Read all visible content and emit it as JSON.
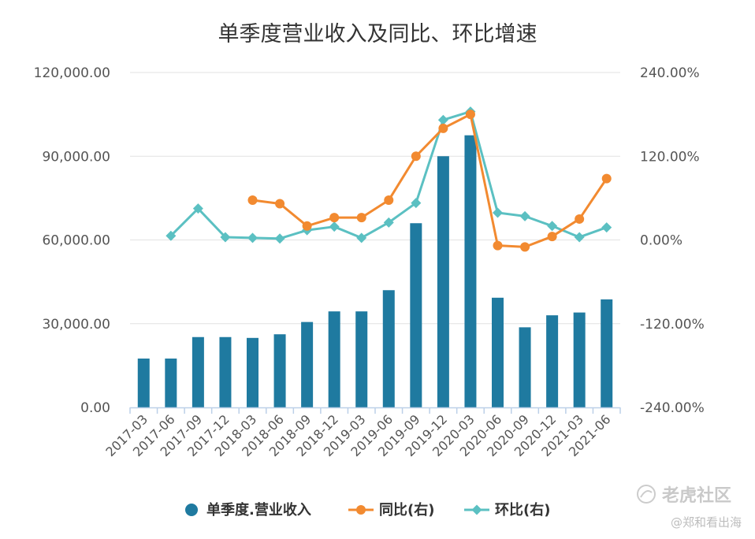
{
  "chart_data": {
    "type": "bar",
    "title": "单季度营业收入及同比、环比增速",
    "categories": [
      "2017-03",
      "2017-06",
      "2017-09",
      "2017-12",
      "2018-03",
      "2018-06",
      "2018-09",
      "2018-12",
      "2019-03",
      "2019-06",
      "2019-09",
      "2019-12",
      "2020-03",
      "2020-06",
      "2020-09",
      "2020-12",
      "2021-03",
      "2021-06"
    ],
    "left_axis": {
      "ylim": [
        0,
        120000
      ],
      "ticks": [
        "0.00",
        "30,000.00",
        "60,000.00",
        "90,000.00",
        "120,000.00"
      ],
      "tick_values": [
        0,
        30000,
        60000,
        90000,
        120000
      ]
    },
    "right_axis": {
      "ylim": [
        -240,
        240
      ],
      "ticks": [
        "-240.00%",
        "-120.00%",
        "0.00%",
        "120.00%",
        "240.00%"
      ],
      "tick_values": [
        -240,
        -120,
        0,
        120,
        240
      ]
    },
    "series": [
      {
        "name": "单季度.营业收入",
        "kind": "bar",
        "axis": "left",
        "color": "#1f7aa0",
        "values": [
          17500,
          17500,
          25200,
          25200,
          24900,
          26200,
          30600,
          34400,
          34400,
          42000,
          66000,
          90000,
          97500,
          39300,
          28700,
          33000,
          34000,
          38700
        ]
      },
      {
        "name": "同比(右)",
        "kind": "line",
        "axis": "right",
        "color": "#f28a30",
        "values": [
          null,
          null,
          null,
          null,
          57,
          52,
          20,
          32,
          32,
          57,
          120,
          160,
          180,
          -8,
          -10,
          5,
          30,
          88
        ]
      },
      {
        "name": "环比(右)",
        "kind": "line",
        "axis": "right",
        "color": "#5bc0c2",
        "values": [
          null,
          6,
          45,
          4,
          3,
          2,
          14,
          19,
          3,
          25,
          53,
          172,
          184,
          39,
          34,
          20,
          4,
          18
        ]
      }
    ],
    "legend": {
      "position": "bottom"
    },
    "grid": true
  },
  "watermark": {
    "brand": "老虎社区",
    "author": "@郑和看出海"
  }
}
